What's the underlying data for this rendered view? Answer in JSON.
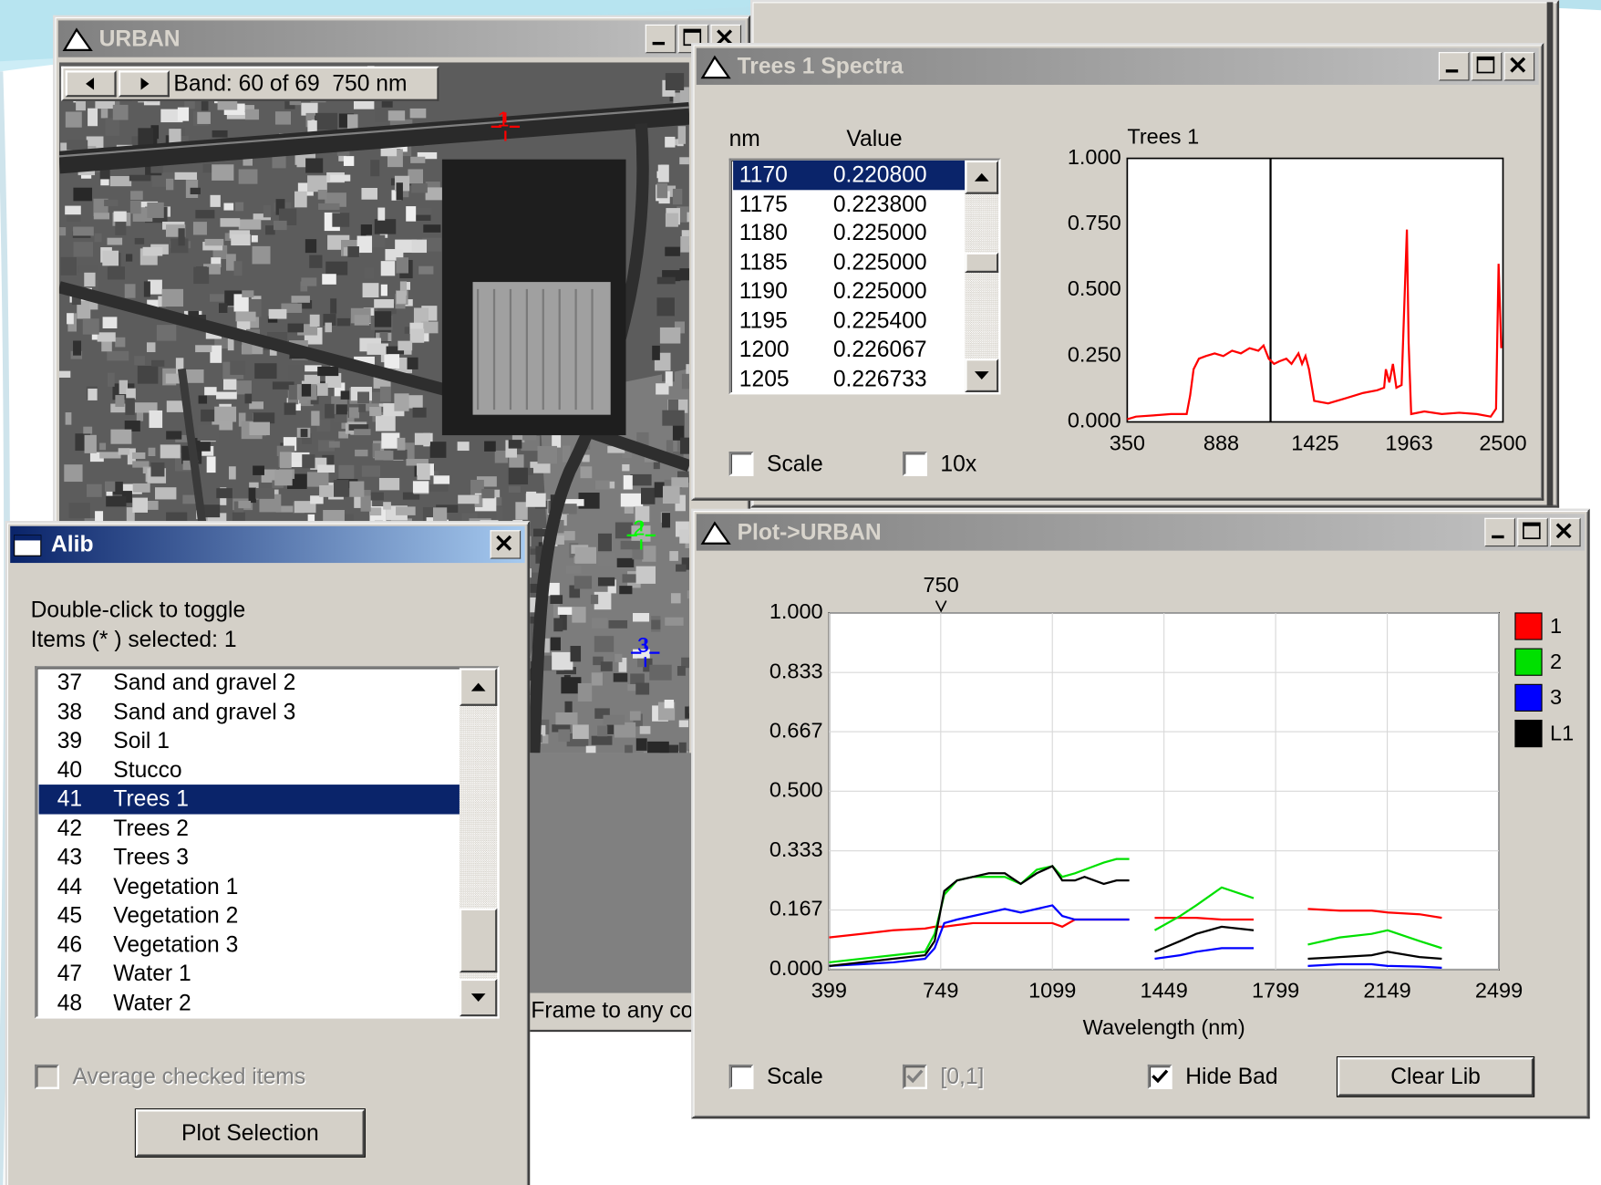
{
  "windows": {
    "urban": {
      "title": "URBAN",
      "band_label": "Band: 60 of 69  750 nm",
      "status": "Frame to any co",
      "cursors": [
        {
          "label": "1",
          "color": "#ff0000"
        },
        {
          "label": "2",
          "color": "#00ff00"
        },
        {
          "label": "3",
          "color": "#0000ff"
        }
      ]
    },
    "trees": {
      "title": "Trees 1 Spectra",
      "columns": [
        "nm",
        "Value"
      ],
      "rows": [
        [
          "1170",
          "0.220800"
        ],
        [
          "1175",
          "0.223800"
        ],
        [
          "1180",
          "0.225000"
        ],
        [
          "1185",
          "0.225000"
        ],
        [
          "1190",
          "0.225000"
        ],
        [
          "1195",
          "0.225400"
        ],
        [
          "1200",
          "0.226067"
        ],
        [
          "1205",
          "0.226733"
        ]
      ],
      "selected": 0,
      "checkboxes": [
        {
          "label": "Scale",
          "checked": false,
          "enabled": true
        },
        {
          "label": "10x",
          "checked": false,
          "enabled": true
        }
      ]
    },
    "plot": {
      "title": "Plot->URBAN",
      "checkboxes": [
        {
          "label": "Scale",
          "checked": false,
          "enabled": true
        },
        {
          "label": "[0,1]",
          "checked": true,
          "enabled": false
        },
        {
          "label": "Hide Bad",
          "checked": true,
          "enabled": true
        }
      ],
      "button": "Clear Lib"
    },
    "alib": {
      "title": "Alib",
      "instructions": [
        "Double-click to toggle",
        "Items (* ) selected: 1"
      ],
      "rows": [
        [
          "37",
          "Sand and gravel 2"
        ],
        [
          "38",
          "Sand and gravel 3"
        ],
        [
          "39",
          "Soil 1"
        ],
        [
          "40",
          "Stucco"
        ],
        [
          "41",
          "Trees 1"
        ],
        [
          "42",
          "Trees 2"
        ],
        [
          "43",
          "Trees 3"
        ],
        [
          "44",
          "Vegetation 1"
        ],
        [
          "45",
          "Vegetation 2"
        ],
        [
          "46",
          "Vegetation 3"
        ],
        [
          "47",
          "Water 1"
        ],
        [
          "48",
          "Water 2"
        ]
      ],
      "selected": 4,
      "checkbox": {
        "label": "Average checked items",
        "checked": false,
        "enabled": false
      },
      "button": "Plot Selection"
    }
  },
  "chart_data": [
    {
      "type": "line",
      "title": "Trees 1",
      "color": "#ff0000",
      "x": [
        350,
        400,
        500,
        600,
        690,
        710,
        730,
        760,
        800,
        850,
        900,
        950,
        1000,
        1050,
        1100,
        1130,
        1160,
        1190,
        1220,
        1260,
        1290,
        1330,
        1350,
        1370,
        1390,
        1420,
        1500,
        1600,
        1700,
        1780,
        1820,
        1830,
        1850,
        1870,
        1890,
        1920,
        1950,
        1960,
        1975,
        2050,
        2150,
        2250,
        2350,
        2430,
        2460,
        2475,
        2490
      ],
      "values": [
        0.01,
        0.02,
        0.025,
        0.03,
        0.03,
        0.1,
        0.2,
        0.24,
        0.25,
        0.26,
        0.25,
        0.27,
        0.26,
        0.28,
        0.27,
        0.29,
        0.24,
        0.22,
        0.23,
        0.24,
        0.22,
        0.26,
        0.22,
        0.25,
        0.2,
        0.08,
        0.07,
        0.09,
        0.11,
        0.12,
        0.13,
        0.2,
        0.15,
        0.22,
        0.13,
        0.14,
        0.73,
        0.3,
        0.03,
        0.04,
        0.03,
        0.035,
        0.03,
        0.02,
        0.05,
        0.6,
        0.28
      ],
      "xlim": [
        350,
        2500
      ],
      "ylim": [
        0,
        1
      ],
      "xticks": [
        350,
        888,
        1425,
        1963,
        2500
      ],
      "yticks": [
        {
          "value": 0,
          "label": "0.000"
        },
        {
          "value": 0.25,
          "label": "0.250"
        },
        {
          "value": 0.5,
          "label": "0.500"
        },
        {
          "value": 0.75,
          "label": "0.750"
        },
        {
          "value": 1,
          "label": "1.000"
        }
      ],
      "marker_x": 1170,
      "grid": false
    },
    {
      "type": "line",
      "x_label": "Wavelength (nm)",
      "legend": "right",
      "marker": 750,
      "grid": true,
      "x": [
        399,
        500,
        600,
        700,
        730,
        760,
        800,
        850,
        900,
        950,
        1000,
        1050,
        1099,
        1130,
        1170,
        1200,
        1260,
        1300,
        1340,
        1380,
        1420,
        1500,
        1550,
        1630,
        1730,
        1800,
        1900,
        2000,
        2100,
        2150,
        2250,
        2320
      ],
      "series": [
        {
          "name": "1",
          "color": "#ff0000",
          "values": [
            0.09,
            0.1,
            0.11,
            0.115,
            0.12,
            0.12,
            0.125,
            0.13,
            0.13,
            0.13,
            0.13,
            0.13,
            0.13,
            0.12,
            0.14,
            0.14,
            0.14,
            0.14,
            0.14,
            null,
            0.145,
            0.145,
            0.145,
            0.14,
            0.14,
            null,
            0.17,
            0.165,
            0.165,
            0.16,
            0.155,
            0.145
          ]
        },
        {
          "name": "2",
          "color": "#00e000",
          "values": [
            0.02,
            0.03,
            0.04,
            0.05,
            0.1,
            0.21,
            0.25,
            0.26,
            0.26,
            0.26,
            0.24,
            0.28,
            0.29,
            0.26,
            0.27,
            0.28,
            0.3,
            0.31,
            0.31,
            null,
            0.11,
            0.15,
            0.18,
            0.23,
            0.2,
            null,
            0.07,
            0.09,
            0.1,
            0.11,
            0.08,
            0.06
          ]
        },
        {
          "name": "3",
          "color": "#0000ff",
          "values": [
            0.01,
            0.015,
            0.02,
            0.03,
            0.06,
            0.13,
            0.14,
            0.15,
            0.16,
            0.17,
            0.16,
            0.17,
            0.18,
            0.15,
            0.14,
            0.14,
            0.14,
            0.14,
            0.14,
            null,
            0.03,
            0.04,
            0.05,
            0.06,
            0.06,
            null,
            0.01,
            0.015,
            0.015,
            0.01,
            0.008,
            0.005
          ]
        },
        {
          "name": "L1",
          "color": "#000000",
          "values": [
            0.01,
            0.02,
            0.03,
            0.04,
            0.08,
            0.22,
            0.25,
            0.26,
            0.27,
            0.27,
            0.24,
            0.27,
            0.29,
            0.25,
            0.25,
            0.26,
            0.24,
            0.25,
            0.25,
            null,
            0.05,
            0.08,
            0.1,
            0.12,
            0.11,
            null,
            0.03,
            0.035,
            0.04,
            0.05,
            0.035,
            0.03
          ]
        }
      ],
      "xlim": [
        399,
        2499
      ],
      "ylim": [
        0,
        1
      ],
      "xticks": [
        399,
        749,
        1099,
        1449,
        1799,
        2149,
        2499
      ],
      "yticks": [
        {
          "value": 0,
          "label": "0.000"
        },
        {
          "value": 0.167,
          "label": "0.167"
        },
        {
          "value": 0.333,
          "label": "0.333"
        },
        {
          "value": 0.5,
          "label": "0.500"
        },
        {
          "value": 0.667,
          "label": "0.667"
        },
        {
          "value": 0.833,
          "label": "0.833"
        },
        {
          "value": 1,
          "label": "1.000"
        }
      ]
    }
  ]
}
